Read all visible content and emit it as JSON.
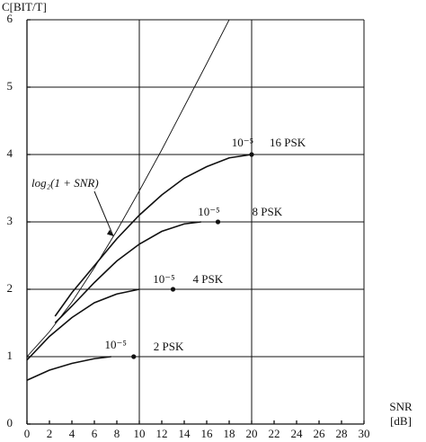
{
  "chart_data": {
    "type": "line",
    "y_label": "C[BIT/T]",
    "x_label": "SNR",
    "x_unit": "[dB]",
    "xlim": [
      0,
      30
    ],
    "ylim": [
      0,
      6
    ],
    "xticks": [
      0,
      2,
      4,
      6,
      8,
      10,
      12,
      14,
      16,
      18,
      20,
      22,
      24,
      26,
      28,
      30
    ],
    "yticks": [
      0,
      1,
      2,
      3,
      4,
      5,
      6
    ],
    "x_grid": [
      10,
      20,
      30
    ],
    "y_grid": [
      1,
      2,
      3,
      4,
      5,
      6
    ],
    "color": "#111",
    "series": [
      {
        "name": "log₂(1 + SNR)",
        "x": [
          0,
          2,
          4,
          6,
          8,
          10,
          12,
          14,
          16,
          18
        ],
        "values": [
          1,
          1.37,
          1.81,
          2.32,
          2.87,
          3.46,
          4.07,
          4.71,
          5.35,
          6.0
        ]
      },
      {
        "name": "16 PSK",
        "x": [
          2.5,
          4,
          6,
          8,
          10,
          12,
          14,
          16,
          18,
          20
        ],
        "values": [
          1.6,
          1.95,
          2.35,
          2.75,
          3.1,
          3.4,
          3.65,
          3.82,
          3.95,
          4.0
        ],
        "point": {
          "x": 20,
          "y": 4,
          "label": "10⁻⁵"
        }
      },
      {
        "name": "8 PSK",
        "x": [
          2.5,
          4,
          6,
          8,
          10,
          12,
          14,
          15.5
        ],
        "values": [
          1.5,
          1.75,
          2.1,
          2.42,
          2.67,
          2.86,
          2.97,
          3.0
        ],
        "point": {
          "x": 17,
          "y": 3,
          "label": "10⁻⁵"
        }
      },
      {
        "name": "4 PSK",
        "x": [
          0,
          2,
          4,
          6,
          8,
          10
        ],
        "values": [
          0.95,
          1.3,
          1.58,
          1.8,
          1.93,
          2.0
        ],
        "point": {
          "x": 13,
          "y": 2,
          "label": "10⁻⁵"
        }
      },
      {
        "name": "2 PSK",
        "x": [
          0,
          2,
          4,
          6,
          7.5
        ],
        "values": [
          0.65,
          0.8,
          0.9,
          0.97,
          1.0
        ],
        "point": {
          "x": 9.5,
          "y": 1,
          "label": "10⁻⁵"
        }
      }
    ]
  }
}
